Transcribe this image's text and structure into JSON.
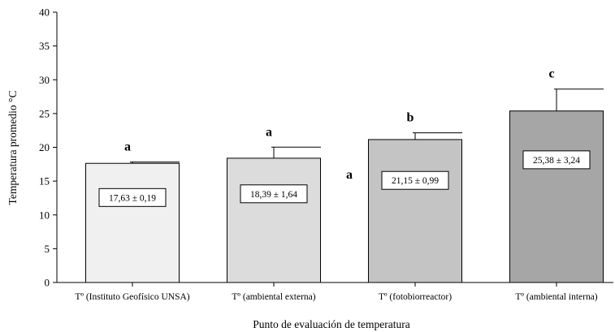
{
  "chart_data": {
    "type": "bar",
    "xlabel": "Punto de evaluación de temperatura",
    "ylabel": "Temperatura promedio °C",
    "ylim": [
      0,
      40
    ],
    "yticks": [
      0,
      5,
      10,
      15,
      20,
      25,
      30,
      35,
      40
    ],
    "grid": false,
    "categories": [
      "Tº (Instituto Geofísico UNSA)",
      "Tº (ambiental externa)",
      "Tº (fotobiorreactor)",
      "Tº (ambiental interna)"
    ],
    "values": [
      17.63,
      18.39,
      21.15,
      25.38
    ],
    "errors": [
      0.19,
      1.64,
      0.99,
      3.24
    ],
    "value_labels": [
      "17,63 ± 0,19",
      "18,39 ± 1,64",
      "21,15 ± 0,99",
      "25,38 ± 3,24"
    ],
    "significance_letters": [
      "a",
      "a",
      "b",
      "c"
    ],
    "extra_annotation": "a",
    "bar_colors": [
      "#f0f0f0",
      "#dcdcdc",
      "#c4c4c4",
      "#a6a6a6"
    ]
  }
}
